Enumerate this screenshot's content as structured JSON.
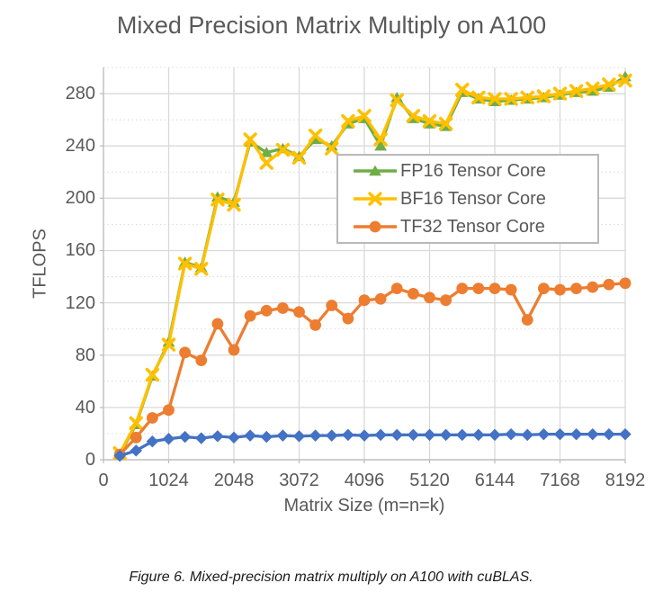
{
  "figure": {
    "caption": "Figure 6. Mixed-precision matrix multiply on A100 with cuBLAS."
  },
  "colors": {
    "background": "#FFFFFF",
    "text": "#595959",
    "caption_text": "#1C1C1C",
    "gridline": "#D9D9D9",
    "axis_line": "#BFBFBF",
    "legend_border": "#B9B9B9"
  },
  "chart_data": {
    "type": "line",
    "title": "Mixed Precision Matrix Multiply on A100",
    "xlabel": "Matrix Size (m=n=k)",
    "ylabel": "TFLOPS",
    "xlim": [
      0,
      8192
    ],
    "ylim": [
      0,
      300
    ],
    "x_ticks": [
      0,
      1024,
      2048,
      3072,
      4096,
      5120,
      6144,
      7168,
      8192
    ],
    "y_ticks": [
      0,
      40,
      80,
      120,
      160,
      200,
      240,
      280
    ],
    "y_minor_ticks": [
      20,
      60,
      100,
      140,
      180,
      220,
      260,
      300
    ],
    "grid": true,
    "legend_position": "inside center-right",
    "x": [
      256,
      512,
      768,
      1024,
      1280,
      1536,
      1792,
      2048,
      2304,
      2560,
      2816,
      3072,
      3328,
      3584,
      3840,
      4096,
      4352,
      4608,
      4864,
      5120,
      5376,
      5632,
      5888,
      6144,
      6400,
      6656,
      6912,
      7168,
      7424,
      7680,
      7936,
      8192
    ],
    "series": [
      {
        "key": "fp16",
        "name": "FP16 Tensor Core",
        "marker": "triangle",
        "color": "#70AD47",
        "in_legend": true,
        "values": [
          4,
          27,
          64,
          90,
          151,
          147,
          201,
          197,
          243,
          235,
          238,
          232,
          245,
          240,
          257,
          261,
          240,
          277,
          261,
          257,
          255,
          281,
          276,
          274,
          275,
          276,
          277,
          279,
          281,
          282,
          285,
          293
        ]
      },
      {
        "key": "bf16",
        "name": "BF16 Tensor Core",
        "marker": "x",
        "color": "#FFC000",
        "in_legend": true,
        "values": [
          5,
          28,
          65,
          88,
          150,
          146,
          199,
          195,
          245,
          227,
          237,
          231,
          248,
          238,
          259,
          263,
          245,
          275,
          263,
          259,
          257,
          283,
          277,
          276,
          276,
          277,
          278,
          280,
          282,
          284,
          287,
          290
        ]
      },
      {
        "key": "tf32",
        "name": "TF32 Tensor Core",
        "marker": "circle",
        "color": "#ED7D31",
        "in_legend": true,
        "values": [
          4,
          17,
          32,
          38,
          82,
          76,
          104,
          84,
          110,
          114,
          116,
          113,
          103,
          118,
          108,
          122,
          123,
          131,
          127,
          124,
          122,
          131,
          131,
          131,
          130,
          107,
          131,
          130,
          131,
          132,
          134,
          135
        ]
      },
      {
        "key": "blue-diamond",
        "name": "",
        "marker": "diamond",
        "color": "#4472C4",
        "in_legend": false,
        "values": [
          3,
          7,
          14,
          16,
          17.5,
          16.5,
          18,
          17,
          18.5,
          17.5,
          18.5,
          18,
          18.5,
          18.5,
          19,
          18.5,
          19,
          19,
          19,
          19,
          19,
          19,
          19,
          19,
          19.5,
          19,
          19.5,
          19.5,
          19.5,
          19.5,
          19.5,
          19.5
        ]
      }
    ]
  }
}
